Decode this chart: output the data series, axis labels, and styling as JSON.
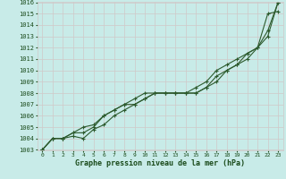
{
  "x": [
    0,
    1,
    2,
    3,
    4,
    5,
    6,
    7,
    8,
    9,
    10,
    11,
    12,
    13,
    14,
    15,
    16,
    17,
    18,
    19,
    20,
    21,
    22,
    23
  ],
  "line1": [
    1003,
    1004,
    1004,
    1004.5,
    1005,
    1005.2,
    1006,
    1006.5,
    1007,
    1007,
    1007.5,
    1008,
    1008,
    1008,
    1008,
    1008,
    1008.5,
    1009,
    1010,
    1010.5,
    1011.5,
    1012,
    1013.5,
    1016
  ],
  "line2": [
    1003,
    1004,
    1004,
    1004.2,
    1004,
    1004.8,
    1005.2,
    1006,
    1006.5,
    1007,
    1007.5,
    1008,
    1008,
    1008,
    1008,
    1008.5,
    1009,
    1010,
    1010.5,
    1011,
    1011.5,
    1012,
    1015,
    1015.2
  ],
  "line3": [
    1003,
    1004,
    1004,
    1004.5,
    1004.5,
    1005,
    1006,
    1006.5,
    1007,
    1007.5,
    1008,
    1008,
    1008,
    1008,
    1008,
    1008,
    1008.5,
    1009.5,
    1010,
    1010.5,
    1011,
    1012,
    1013,
    1016
  ],
  "bg_color": "#c8ebe8",
  "grid_color": "#d0c8c8",
  "line_color": "#2d5a2d",
  "text_color": "#1a4a1a",
  "xlabel": "Graphe pression niveau de la mer (hPa)",
  "ylim": [
    1003,
    1016
  ],
  "xlim": [
    0,
    23
  ],
  "yticks": [
    1003,
    1004,
    1005,
    1006,
    1007,
    1008,
    1009,
    1010,
    1011,
    1012,
    1013,
    1014,
    1015,
    1016
  ],
  "xticks": [
    0,
    1,
    2,
    3,
    4,
    5,
    6,
    7,
    8,
    9,
    10,
    11,
    12,
    13,
    14,
    15,
    16,
    17,
    18,
    19,
    20,
    21,
    22,
    23
  ]
}
